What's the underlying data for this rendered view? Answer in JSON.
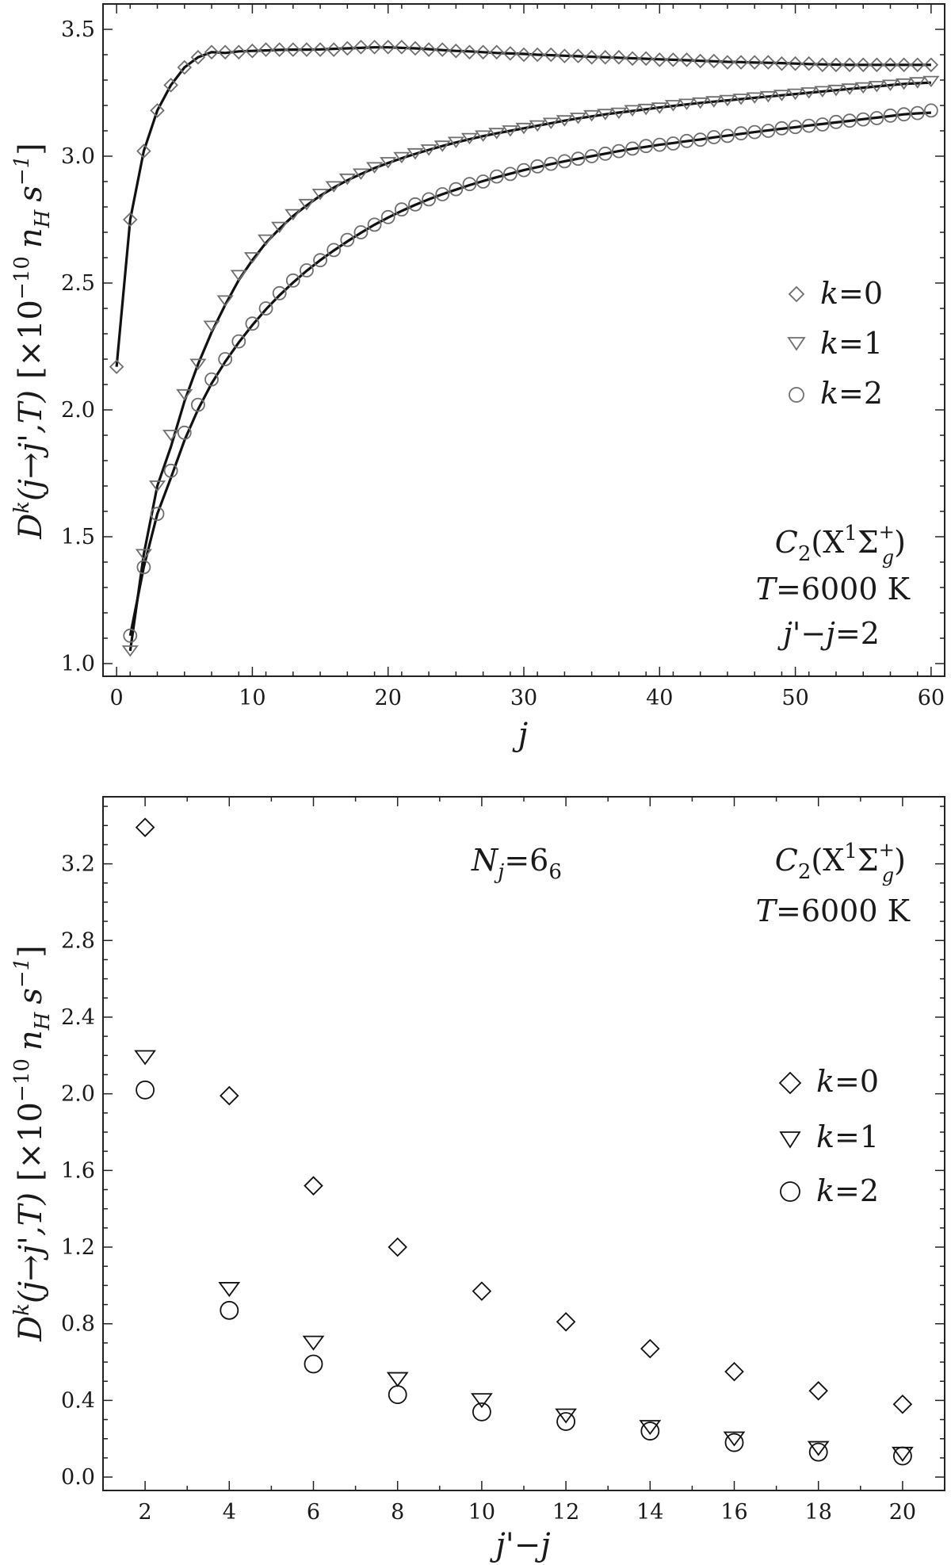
{
  "chart_data": [
    {
      "type": "scatter",
      "xlabel": "j",
      "ylabel": "D^k(j→j',T) [×10^-10 n_H s^-1]",
      "xlim": [
        -1,
        61
      ],
      "ylim": [
        0.95,
        3.6
      ],
      "xticks": [
        0,
        10,
        20,
        30,
        40,
        50,
        60
      ],
      "yticks": [
        1.0,
        1.5,
        2.0,
        2.5,
        3.0,
        3.5
      ],
      "ytick_labels": [
        "1.0",
        "1.5",
        "2.0",
        "2.5",
        "3.0",
        "3.5"
      ],
      "grid": false,
      "legend_position": "right",
      "annotations": [
        "C2(X1Σg+)",
        "T=6000 K",
        "j'−j=2"
      ],
      "series": [
        {
          "name": "k=0",
          "marker": "diamond",
          "x": [
            0,
            1,
            2,
            3,
            4,
            5,
            6,
            7,
            8,
            9,
            10,
            11,
            12,
            13,
            14,
            15,
            16,
            17,
            18,
            19,
            20,
            21,
            22,
            23,
            24,
            25,
            26,
            27,
            28,
            29,
            30,
            31,
            32,
            33,
            34,
            35,
            36,
            37,
            38,
            39,
            40,
            41,
            42,
            43,
            44,
            45,
            46,
            47,
            48,
            49,
            50,
            51,
            52,
            53,
            54,
            55,
            56,
            57,
            58,
            59,
            60
          ],
          "y": [
            2.17,
            2.75,
            3.02,
            3.18,
            3.28,
            3.35,
            3.39,
            3.41,
            3.41,
            3.41,
            3.415,
            3.42,
            3.42,
            3.42,
            3.42,
            3.42,
            3.42,
            3.425,
            3.43,
            3.43,
            3.43,
            3.43,
            3.425,
            3.42,
            3.42,
            3.415,
            3.41,
            3.41,
            3.41,
            3.405,
            3.4,
            3.4,
            3.4,
            3.395,
            3.395,
            3.39,
            3.39,
            3.39,
            3.385,
            3.385,
            3.38,
            3.38,
            3.38,
            3.375,
            3.375,
            3.37,
            3.37,
            3.37,
            3.37,
            3.365,
            3.365,
            3.365,
            3.36,
            3.36,
            3.36,
            3.36,
            3.36,
            3.36,
            3.36,
            3.36,
            3.36
          ]
        },
        {
          "name": "k=1",
          "marker": "triangle-down",
          "x": [
            1,
            2,
            3,
            4,
            5,
            6,
            7,
            8,
            9,
            10,
            11,
            12,
            13,
            14,
            15,
            16,
            17,
            18,
            19,
            20,
            21,
            22,
            23,
            24,
            25,
            26,
            27,
            28,
            29,
            30,
            31,
            32,
            33,
            34,
            35,
            36,
            37,
            38,
            39,
            40,
            41,
            42,
            43,
            44,
            45,
            46,
            47,
            48,
            49,
            50,
            51,
            52,
            53,
            54,
            55,
            56,
            57,
            58,
            59,
            60
          ],
          "y": [
            1.05,
            1.43,
            1.7,
            1.9,
            2.06,
            2.18,
            2.33,
            2.43,
            2.53,
            2.6,
            2.67,
            2.72,
            2.77,
            2.81,
            2.85,
            2.88,
            2.91,
            2.93,
            2.955,
            2.975,
            2.995,
            3.01,
            3.025,
            3.04,
            3.055,
            3.07,
            3.08,
            3.09,
            3.1,
            3.11,
            3.12,
            3.13,
            3.14,
            3.15,
            3.16,
            3.165,
            3.17,
            3.18,
            3.185,
            3.19,
            3.2,
            3.205,
            3.21,
            3.215,
            3.22,
            3.225,
            3.23,
            3.235,
            3.24,
            3.245,
            3.25,
            3.255,
            3.26,
            3.265,
            3.27,
            3.275,
            3.28,
            3.285,
            3.29,
            3.295
          ]
        },
        {
          "name": "k=2",
          "marker": "circle",
          "x": [
            1,
            2,
            3,
            4,
            5,
            6,
            7,
            8,
            9,
            10,
            11,
            12,
            13,
            14,
            15,
            16,
            17,
            18,
            19,
            20,
            21,
            22,
            23,
            24,
            25,
            26,
            27,
            28,
            29,
            30,
            31,
            32,
            33,
            34,
            35,
            36,
            37,
            38,
            39,
            40,
            41,
            42,
            43,
            44,
            45,
            46,
            47,
            48,
            49,
            50,
            51,
            52,
            53,
            54,
            55,
            56,
            57,
            58,
            59,
            60
          ],
          "y": [
            1.11,
            1.38,
            1.59,
            1.76,
            1.91,
            2.02,
            2.12,
            2.2,
            2.27,
            2.34,
            2.4,
            2.46,
            2.51,
            2.55,
            2.59,
            2.63,
            2.67,
            2.7,
            2.73,
            2.76,
            2.79,
            2.81,
            2.83,
            2.85,
            2.87,
            2.89,
            2.9,
            2.92,
            2.93,
            2.945,
            2.96,
            2.97,
            2.98,
            2.99,
            3.0,
            3.01,
            3.02,
            3.03,
            3.04,
            3.045,
            3.05,
            3.06,
            3.065,
            3.075,
            3.08,
            3.09,
            3.095,
            3.1,
            3.11,
            3.115,
            3.12,
            3.125,
            3.135,
            3.14,
            3.145,
            3.15,
            3.16,
            3.165,
            3.17,
            3.18
          ]
        }
      ]
    },
    {
      "type": "scatter",
      "xlabel": "j'−j",
      "ylabel": "D^k(j→j',T) [×10^-10 n_H s^-1]",
      "xlim": [
        1,
        21
      ],
      "ylim": [
        -0.07,
        3.55
      ],
      "xticks": [
        2,
        4,
        6,
        8,
        10,
        12,
        14,
        16,
        18,
        20
      ],
      "yticks": [
        0.0,
        0.4,
        0.8,
        1.2,
        1.6,
        2.0,
        2.4,
        2.8,
        3.2
      ],
      "ytick_labels": [
        "0.0",
        "0.4",
        "0.8",
        "1.2",
        "1.6",
        "2.0",
        "2.4",
        "2.8",
        "3.2"
      ],
      "grid": false,
      "legend_position": "right",
      "annotations": [
        "Nj=66",
        "C2(X1Σg+)",
        "T=6000 K"
      ],
      "series": [
        {
          "name": "k=0",
          "marker": "diamond",
          "x": [
            2,
            4,
            6,
            8,
            10,
            12,
            14,
            16,
            18,
            20
          ],
          "y": [
            3.39,
            1.99,
            1.52,
            1.2,
            0.97,
            0.81,
            0.67,
            0.55,
            0.45,
            0.38
          ]
        },
        {
          "name": "k=1",
          "marker": "triangle-down",
          "x": [
            2,
            4,
            6,
            8,
            10,
            12,
            14,
            16,
            18,
            20
          ],
          "y": [
            2.19,
            0.98,
            0.7,
            0.51,
            0.4,
            0.32,
            0.26,
            0.2,
            0.15,
            0.12
          ]
        },
        {
          "name": "k=2",
          "marker": "circle",
          "x": [
            2,
            4,
            6,
            8,
            10,
            12,
            14,
            16,
            18,
            20
          ],
          "y": [
            2.02,
            0.87,
            0.59,
            0.43,
            0.34,
            0.29,
            0.24,
            0.18,
            0.13,
            0.11
          ]
        }
      ]
    }
  ],
  "top": {
    "ylabel": {
      "base": "D",
      "sup_k": "k",
      "args": "(j→j',T)",
      "bracket_open": "[×10",
      "exp": "−10",
      "nh": "n",
      "nh_sub": "H",
      "s": "s",
      "s_exp": "−1",
      "bracket_close": "]"
    },
    "xlabel": "j",
    "annotation": {
      "species_base": "C",
      "species_sub": "2",
      "state_open": "(X",
      "state_sup1": "1",
      "state_sigma": "Σ",
      "state_sup_plus": "+",
      "state_sub_g": "g",
      "state_close": ")",
      "temp_sym": "T",
      "temp_val": "=6000 K",
      "delta_j_prime": "j'",
      "delta_minus": "−",
      "delta_j": "j",
      "delta_val": "=2"
    },
    "legend": [
      {
        "k": "k",
        "val": "=0"
      },
      {
        "k": "k",
        "val": "=1"
      },
      {
        "k": "k",
        "val": "=2"
      }
    ]
  },
  "bottom": {
    "ylabel": {
      "base": "D",
      "sup_k": "k",
      "args": "(j→j',T)",
      "bracket_open": "[×10",
      "exp": "−10",
      "nh": "n",
      "nh_sub": "H",
      "s": "s",
      "s_exp": "−1",
      "bracket_close": "]"
    },
    "xlabel": {
      "j_prime": "j'",
      "minus": "−",
      "j": "j"
    },
    "annotation": {
      "nj_sym": "N",
      "nj_sub": "j",
      "nj_val": "=6",
      "nj_val_sub": "6",
      "species_base": "C",
      "species_sub": "2",
      "state_open": "(X",
      "state_sup1": "1",
      "state_sigma": "Σ",
      "state_sup_plus": "+",
      "state_sub_g": "g",
      "state_close": ")",
      "temp_sym": "T",
      "temp_val": "=6000 K"
    },
    "legend": [
      {
        "k": "k",
        "val": "=0"
      },
      {
        "k": "k",
        "val": "=1"
      },
      {
        "k": "k",
        "val": "=2"
      }
    ]
  }
}
